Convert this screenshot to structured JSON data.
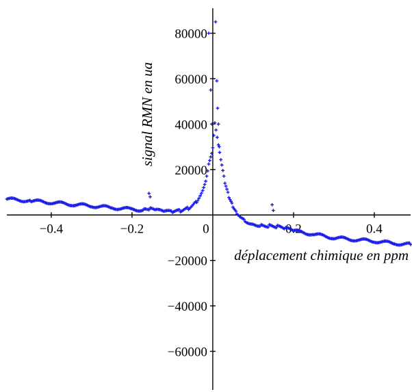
{
  "chart_data": {
    "type": "scatter",
    "title": "",
    "xlabel": "déplacement chimique en ppm",
    "ylabel": "signal RMN en ua",
    "xlim": [
      -0.51,
      0.49
    ],
    "ylim": [
      -77000,
      91000
    ],
    "x_ticks": [
      -0.4,
      -0.2,
      0,
      0.2,
      0.4
    ],
    "x_tick_labels": [
      "−0.4",
      "−0.2",
      "0",
      "0.2",
      "0.4"
    ],
    "y_ticks": [
      80000,
      60000,
      40000,
      20000,
      -20000,
      -40000,
      -60000
    ],
    "y_tick_labels": [
      "80000",
      "60000",
      "40000",
      "20000",
      "−20000",
      "−40000",
      "−60000"
    ],
    "grid": false,
    "marker": "cross",
    "color": "#1a1ae6",
    "series": [
      {
        "baseline": [
          [
            -0.51,
            7000
          ],
          [
            -0.45,
            6200
          ],
          [
            -0.4,
            5500
          ],
          [
            -0.35,
            4700
          ],
          [
            -0.3,
            4000
          ],
          [
            -0.25,
            3200
          ],
          [
            -0.2,
            2500
          ],
          [
            -0.17,
            2200
          ],
          [
            -0.155,
            2500
          ],
          [
            -0.14,
            2000
          ],
          [
            -0.12,
            1500
          ],
          [
            -0.1,
            1300
          ],
          [
            -0.08,
            1800
          ],
          [
            -0.06,
            3000
          ],
          [
            -0.04,
            6000
          ],
          [
            -0.025,
            11000
          ],
          [
            -0.015,
            17000
          ],
          [
            -0.01,
            22000
          ],
          [
            0.0,
            29000
          ],
          [
            0.005,
            40000
          ],
          [
            0.02,
            24000
          ],
          [
            0.03,
            14000
          ],
          [
            0.04,
            8000
          ],
          [
            0.05,
            4000
          ],
          [
            0.06,
            1000
          ],
          [
            0.08,
            -2500
          ],
          [
            0.1,
            -4000
          ],
          [
            0.12,
            -4500
          ],
          [
            0.14,
            -4800
          ],
          [
            0.16,
            -5200
          ],
          [
            0.18,
            -6000
          ],
          [
            0.2,
            -7000
          ],
          [
            0.25,
            -8500
          ],
          [
            0.3,
            -10000
          ],
          [
            0.35,
            -10800
          ],
          [
            0.4,
            -11500
          ],
          [
            0.45,
            -12500
          ],
          [
            0.49,
            -13000
          ]
        ],
        "isolated_points": [
          [
            -0.158,
            9500
          ],
          [
            -0.155,
            8000
          ],
          [
            -0.01,
            80000
          ],
          [
            -0.005,
            55000
          ],
          [
            -0.002,
            40000
          ],
          [
            0.007,
            85000
          ],
          [
            0.01,
            59000
          ],
          [
            0.012,
            47000
          ],
          [
            0.014,
            40000
          ],
          [
            0.016,
            30000
          ],
          [
            0.147,
            4500
          ],
          [
            0.15,
            2000
          ]
        ]
      }
    ]
  }
}
